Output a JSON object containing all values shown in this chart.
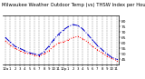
{
  "title": "Milwaukee Weather Outdoor Temp (vs) THSW Index per Hour (Last 24 Hours)",
  "title_fontsize": 3.8,
  "background_color": "#ffffff",
  "grid_color": "#808080",
  "hours": [
    0,
    1,
    2,
    3,
    4,
    5,
    6,
    7,
    8,
    9,
    10,
    11,
    12,
    13,
    14,
    15,
    16,
    17,
    18,
    19,
    20,
    21,
    22,
    23
  ],
  "temp": [
    62,
    58,
    55,
    53,
    51,
    50,
    49,
    48,
    50,
    53,
    57,
    60,
    61,
    63,
    65,
    66,
    64,
    61,
    57,
    54,
    51,
    48,
    46,
    44
  ],
  "thsw": [
    65,
    61,
    57,
    55,
    53,
    51,
    50,
    49,
    52,
    57,
    63,
    68,
    72,
    75,
    77,
    76,
    73,
    68,
    63,
    58,
    54,
    50,
    47,
    45
  ],
  "temp_color": "#ff0000",
  "thsw_color": "#0000cc",
  "ylabel_fontsize": 3.2,
  "xlabel_fontsize": 2.8,
  "ylim": [
    40,
    85
  ],
  "yticks": [
    45,
    50,
    55,
    60,
    65,
    70,
    75,
    80
  ],
  "xtick_labels": [
    "12a",
    "1",
    "2",
    "3",
    "4",
    "5",
    "6",
    "7",
    "8",
    "9",
    "10",
    "11",
    "12p",
    "1",
    "2",
    "3",
    "4",
    "5",
    "6",
    "7",
    "8",
    "9",
    "10",
    "11"
  ]
}
